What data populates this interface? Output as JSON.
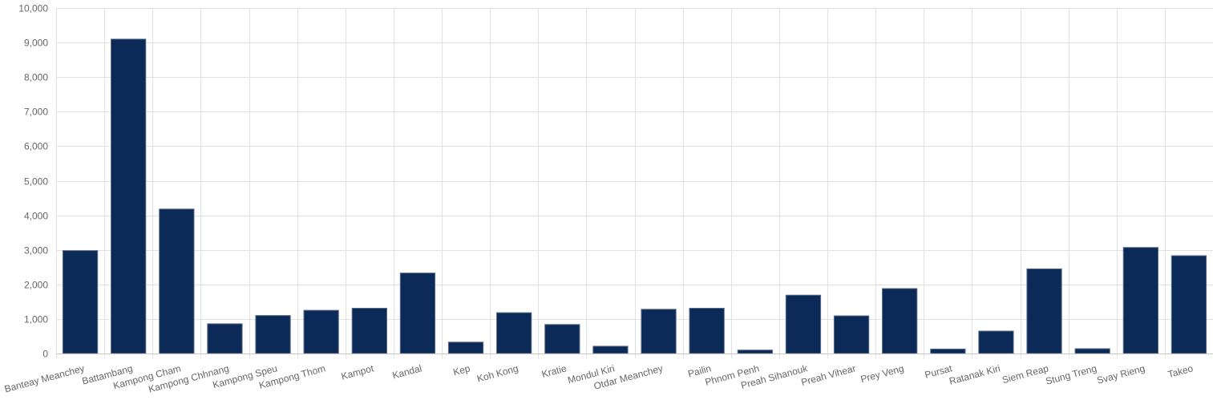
{
  "chart_data": {
    "type": "bar",
    "title": "",
    "xlabel": "",
    "ylabel": "",
    "ylim": [
      0,
      10000
    ],
    "yticks": [
      0,
      1000,
      2000,
      3000,
      4000,
      5000,
      6000,
      7000,
      8000,
      9000,
      10000
    ],
    "ytick_labels": [
      "0",
      "1,000",
      "2,000",
      "3,000",
      "4,000",
      "5,000",
      "6,000",
      "7,000",
      "8,000",
      "9,000",
      "10,000"
    ],
    "grid": true,
    "legend": "none",
    "bar_color": "#0b2a58",
    "bar_edge_color": "#5d6f8a",
    "categories": [
      "Banteay Meanchey",
      "Battambang",
      "Kampong Cham",
      "Kampong Chhnang",
      "Kampong Speu",
      "Kampong Thom",
      "Kampot",
      "Kandal",
      "Kep",
      "Koh Kong",
      "Kratie",
      "Mondul Kiri",
      "Otdar Meanchey",
      "Pailin",
      "Phnom Penh",
      "Preah Sihanouk",
      "Preah Vihear",
      "Prey Veng",
      "Pursat",
      "Ratanak Kiri",
      "Siem Reap",
      "Stung Treng",
      "Svay Rieng",
      "Takeo"
    ],
    "values": [
      2980,
      9100,
      4180,
      860,
      1100,
      1250,
      1310,
      2330,
      330,
      1180,
      840,
      210,
      1280,
      1310,
      100,
      1690,
      1090,
      1880,
      130,
      650,
      2450,
      140,
      3070,
      2830
    ]
  }
}
